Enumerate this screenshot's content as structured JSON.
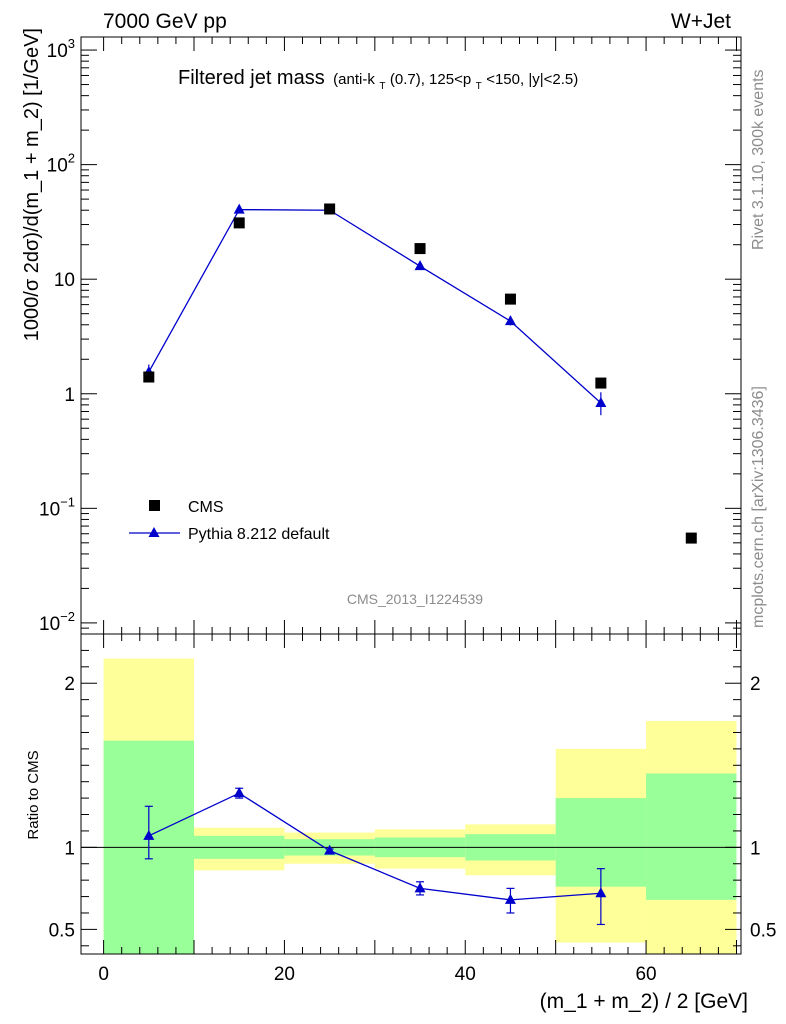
{
  "header": {
    "left": "7000 GeV pp",
    "right": "W+Jet"
  },
  "side_labels": {
    "rivet": "Rivet 3.1.10,  300k events",
    "mcplots": "mcplots.cern.ch [arXiv:1306.3436]"
  },
  "analysis_id": "CMS_2013_I1224539",
  "colors": {
    "mc": "#0000cc",
    "band_inner": "#99ff99",
    "band_outer": "#ffff99",
    "data": "#000000"
  },
  "chart_data": [
    {
      "type": "scatter",
      "panel": "main",
      "title": "Filtered jet mass",
      "title_main": "Filtered jet mass",
      "title_sub": "(anti-k",
      "title_sub_T": "T",
      "title_sub_mid": "(0.7), 125<p",
      "title_sub_T2": "T",
      "title_sub_end": "<150, |y|<2.5)",
      "ylabel": "1000/σ 2dσ)/d(m_1 + m_2) [1/GeV]",
      "yscale": "log",
      "ylim": [
        0.008,
        1300
      ],
      "xlim": [
        -2.5,
        70.5
      ],
      "yticks": [
        {
          "v": 0.01,
          "base": "10",
          "exp": "−2"
        },
        {
          "v": 0.1,
          "base": "10",
          "exp": "−1"
        },
        {
          "v": 1,
          "base": "1",
          "exp": ""
        },
        {
          "v": 10,
          "base": "10",
          "exp": ""
        },
        {
          "v": 100,
          "base": "10",
          "exp": "2"
        },
        {
          "v": 1000,
          "base": "10",
          "exp": "3"
        }
      ],
      "legend": {
        "placement": "lower-left",
        "data": "CMS",
        "mc": "Pythia 8.212 default"
      },
      "series": [
        {
          "name": "CMS",
          "style": "square",
          "x": [
            5,
            15,
            25,
            35,
            45,
            55,
            65
          ],
          "y": [
            1.4,
            31,
            41,
            18.5,
            6.7,
            1.24,
            0.055
          ]
        },
        {
          "name": "Pythia 8.212 default",
          "style": "line-triangle",
          "x": [
            5,
            15,
            25,
            35,
            45,
            55
          ],
          "y": [
            1.55,
            40.5,
            40,
            13,
            4.3,
            0.83
          ],
          "yerr_lo": [
            0.2,
            1.2,
            1.2,
            0.5,
            0.35,
            0.18
          ],
          "yerr_hi": [
            0.25,
            1.2,
            1.2,
            0.5,
            0.45,
            0.2
          ]
        }
      ]
    },
    {
      "type": "line",
      "panel": "ratio",
      "xlabel": "(m_1 + m_2) / 2 [GeV]",
      "ylabel": "Ratio to CMS",
      "ylim": [
        0.35,
        2.3
      ],
      "xlim": [
        -2.5,
        70.5
      ],
      "yticks": [
        "0.5",
        "1",
        "2"
      ],
      "xticks": [
        "0",
        "20",
        "40",
        "60"
      ],
      "bands": [
        {
          "x0": 0,
          "x1": 10,
          "inner": [
            0.35,
            1.65
          ],
          "outer": [
            0.35,
            2.15
          ]
        },
        {
          "x0": 10,
          "x1": 20,
          "inner": [
            0.93,
            1.07
          ],
          "outer": [
            0.86,
            1.12
          ]
        },
        {
          "x0": 20,
          "x1": 30,
          "inner": [
            0.95,
            1.05
          ],
          "outer": [
            0.9,
            1.09
          ]
        },
        {
          "x0": 30,
          "x1": 40,
          "inner": [
            0.94,
            1.06
          ],
          "outer": [
            0.87,
            1.11
          ]
        },
        {
          "x0": 40,
          "x1": 50,
          "inner": [
            0.92,
            1.08
          ],
          "outer": [
            0.83,
            1.14
          ]
        },
        {
          "x0": 50,
          "x1": 60,
          "inner": [
            0.76,
            1.3
          ],
          "outer": [
            0.42,
            1.6
          ]
        },
        {
          "x0": 60,
          "x1": 70,
          "inner": [
            0.68,
            1.45
          ],
          "outer": [
            0.35,
            1.77
          ]
        }
      ],
      "series": [
        {
          "name": "Pythia 8.212 default",
          "x": [
            5,
            15,
            25,
            35,
            45,
            55
          ],
          "y": [
            1.07,
            1.33,
            0.98,
            0.75,
            0.68,
            0.72
          ],
          "yerr_lo": [
            0.14,
            0.03,
            0.01,
            0.04,
            0.08,
            0.19
          ],
          "yerr_hi": [
            0.18,
            0.03,
            0.01,
            0.04,
            0.07,
            0.15
          ]
        }
      ]
    }
  ]
}
